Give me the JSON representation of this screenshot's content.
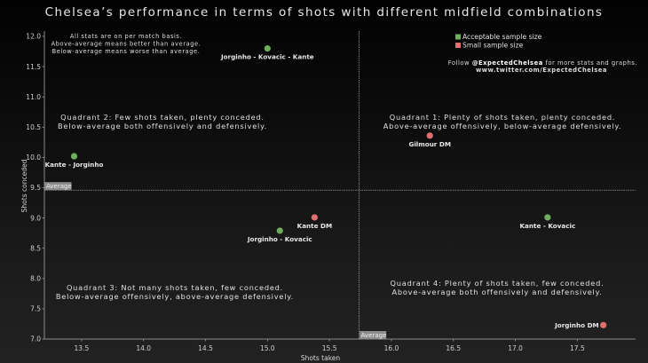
{
  "chart_data": {
    "type": "scatter",
    "title": "Chelsea’s performance in terms of shots with different midfield combinations",
    "xlabel": "Shots taken",
    "ylabel": "Shots conceded",
    "xlim": [
      13.2,
      17.97
    ],
    "ylim": [
      7.0,
      12.0
    ],
    "xticks": [
      13.5,
      14.0,
      14.5,
      15.0,
      15.5,
      16.0,
      16.5,
      17.0,
      17.5
    ],
    "yticks": [
      7.0,
      7.5,
      8.0,
      8.5,
      9.0,
      9.5,
      10.0,
      10.5,
      11.0,
      11.5,
      12.0
    ],
    "grid": false,
    "averages": {
      "x": 15.74,
      "y": 9.46,
      "label": "Average"
    },
    "colors": {
      "acceptable": "#6fae5f",
      "small": "#e0706f"
    },
    "points": [
      {
        "label": "Jorginho - Kovacic - Kante",
        "x": 15.0,
        "y": 11.8,
        "sample": "acceptable",
        "label_pos": "below"
      },
      {
        "label": "Kante - Jorginho",
        "x": 13.44,
        "y": 10.02,
        "sample": "acceptable",
        "label_pos": "below"
      },
      {
        "label": "Gilmour DM",
        "x": 16.31,
        "y": 10.36,
        "sample": "small",
        "label_pos": "below"
      },
      {
        "label": "Kante DM",
        "x": 15.38,
        "y": 9.01,
        "sample": "small",
        "label_pos": "below"
      },
      {
        "label": "Jorginho - Kovacic",
        "x": 15.1,
        "y": 8.79,
        "sample": "acceptable",
        "label_pos": "below"
      },
      {
        "label": "Kante - Kovacic",
        "x": 17.26,
        "y": 9.01,
        "sample": "acceptable",
        "label_pos": "below"
      },
      {
        "label": "Jorginho DM",
        "x": 17.71,
        "y": 7.23,
        "sample": "small",
        "label_pos": "left"
      }
    ],
    "legend": {
      "placement": "top-right",
      "entries": [
        {
          "label": "Acceptable sample size",
          "sample": "acceptable"
        },
        {
          "label": "Small sample size",
          "sample": "small"
        }
      ]
    },
    "annotations": {
      "note": [
        "All stats are on per match basis.",
        "Above-average means better than average.",
        "Below-average means worse than average."
      ],
      "follow_prefix": "Follow ",
      "follow_handle": "@ExpectedChelsea",
      "follow_suffix": " for more stats and graphs.",
      "follow_url": "www.twitter.com/ExpectedChelsea",
      "quadrants": [
        {
          "id": "q1",
          "lines": [
            "Quadrant 1: Plenty of shots taken, plenty conceded.",
            "Above-average offensively, below-average defensively."
          ]
        },
        {
          "id": "q2",
          "lines": [
            "Quadrant 2: Few shots taken, plenty conceded.",
            "Below-average both offensively and defensively."
          ]
        },
        {
          "id": "q3",
          "lines": [
            "Quadrant 3: Not many shots taken, few conceded.",
            "Below-average offensively, above-average defensively."
          ]
        },
        {
          "id": "q4",
          "lines": [
            "Quadrant 4: Plenty of shots taken, few conceded.",
            "Above-average both offensively and defensively."
          ]
        }
      ]
    }
  }
}
